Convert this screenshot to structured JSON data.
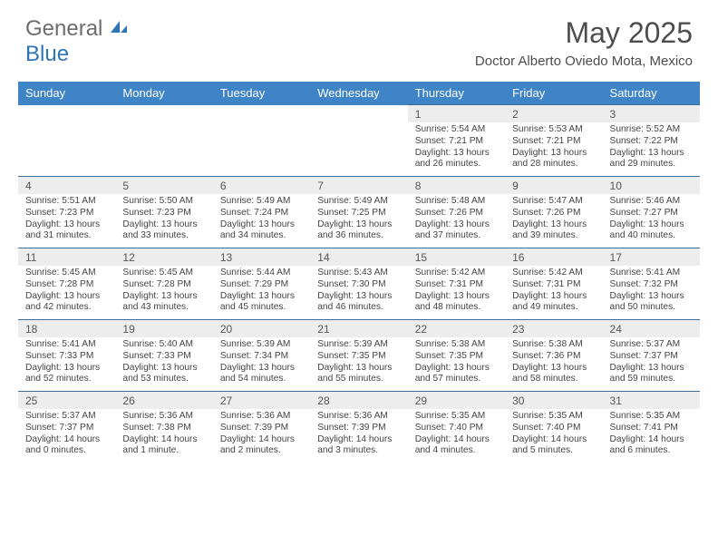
{
  "logo": {
    "text_a": "General",
    "text_b": "Blue"
  },
  "title": "May 2025",
  "subtitle": "Doctor Alberto Oviedo Mota, Mexico",
  "colors": {
    "header_bg": "#3e84c6",
    "header_text": "#ffffff",
    "daynum_bg": "#ededed",
    "border": "#3e6d99",
    "body_text": "#444444",
    "logo_gray": "#6d6d6d",
    "logo_blue": "#2f74b5"
  },
  "fonts": {
    "title_size": 32,
    "subtitle_size": 15,
    "dayheader_size": 13,
    "daynum_size": 12,
    "detail_size": 10.2
  },
  "day_headers": [
    "Sunday",
    "Monday",
    "Tuesday",
    "Wednesday",
    "Thursday",
    "Friday",
    "Saturday"
  ],
  "weeks": [
    [
      null,
      null,
      null,
      null,
      {
        "n": "1",
        "sr": "5:54 AM",
        "ss": "7:21 PM",
        "dl": "13 hours and 26 minutes."
      },
      {
        "n": "2",
        "sr": "5:53 AM",
        "ss": "7:21 PM",
        "dl": "13 hours and 28 minutes."
      },
      {
        "n": "3",
        "sr": "5:52 AM",
        "ss": "7:22 PM",
        "dl": "13 hours and 29 minutes."
      }
    ],
    [
      {
        "n": "4",
        "sr": "5:51 AM",
        "ss": "7:23 PM",
        "dl": "13 hours and 31 minutes."
      },
      {
        "n": "5",
        "sr": "5:50 AM",
        "ss": "7:23 PM",
        "dl": "13 hours and 33 minutes."
      },
      {
        "n": "6",
        "sr": "5:49 AM",
        "ss": "7:24 PM",
        "dl": "13 hours and 34 minutes."
      },
      {
        "n": "7",
        "sr": "5:49 AM",
        "ss": "7:25 PM",
        "dl": "13 hours and 36 minutes."
      },
      {
        "n": "8",
        "sr": "5:48 AM",
        "ss": "7:26 PM",
        "dl": "13 hours and 37 minutes."
      },
      {
        "n": "9",
        "sr": "5:47 AM",
        "ss": "7:26 PM",
        "dl": "13 hours and 39 minutes."
      },
      {
        "n": "10",
        "sr": "5:46 AM",
        "ss": "7:27 PM",
        "dl": "13 hours and 40 minutes."
      }
    ],
    [
      {
        "n": "11",
        "sr": "5:45 AM",
        "ss": "7:28 PM",
        "dl": "13 hours and 42 minutes."
      },
      {
        "n": "12",
        "sr": "5:45 AM",
        "ss": "7:28 PM",
        "dl": "13 hours and 43 minutes."
      },
      {
        "n": "13",
        "sr": "5:44 AM",
        "ss": "7:29 PM",
        "dl": "13 hours and 45 minutes."
      },
      {
        "n": "14",
        "sr": "5:43 AM",
        "ss": "7:30 PM",
        "dl": "13 hours and 46 minutes."
      },
      {
        "n": "15",
        "sr": "5:42 AM",
        "ss": "7:31 PM",
        "dl": "13 hours and 48 minutes."
      },
      {
        "n": "16",
        "sr": "5:42 AM",
        "ss": "7:31 PM",
        "dl": "13 hours and 49 minutes."
      },
      {
        "n": "17",
        "sr": "5:41 AM",
        "ss": "7:32 PM",
        "dl": "13 hours and 50 minutes."
      }
    ],
    [
      {
        "n": "18",
        "sr": "5:41 AM",
        "ss": "7:33 PM",
        "dl": "13 hours and 52 minutes."
      },
      {
        "n": "19",
        "sr": "5:40 AM",
        "ss": "7:33 PM",
        "dl": "13 hours and 53 minutes."
      },
      {
        "n": "20",
        "sr": "5:39 AM",
        "ss": "7:34 PM",
        "dl": "13 hours and 54 minutes."
      },
      {
        "n": "21",
        "sr": "5:39 AM",
        "ss": "7:35 PM",
        "dl": "13 hours and 55 minutes."
      },
      {
        "n": "22",
        "sr": "5:38 AM",
        "ss": "7:35 PM",
        "dl": "13 hours and 57 minutes."
      },
      {
        "n": "23",
        "sr": "5:38 AM",
        "ss": "7:36 PM",
        "dl": "13 hours and 58 minutes."
      },
      {
        "n": "24",
        "sr": "5:37 AM",
        "ss": "7:37 PM",
        "dl": "13 hours and 59 minutes."
      }
    ],
    [
      {
        "n": "25",
        "sr": "5:37 AM",
        "ss": "7:37 PM",
        "dl": "14 hours and 0 minutes."
      },
      {
        "n": "26",
        "sr": "5:36 AM",
        "ss": "7:38 PM",
        "dl": "14 hours and 1 minute."
      },
      {
        "n": "27",
        "sr": "5:36 AM",
        "ss": "7:39 PM",
        "dl": "14 hours and 2 minutes."
      },
      {
        "n": "28",
        "sr": "5:36 AM",
        "ss": "7:39 PM",
        "dl": "14 hours and 3 minutes."
      },
      {
        "n": "29",
        "sr": "5:35 AM",
        "ss": "7:40 PM",
        "dl": "14 hours and 4 minutes."
      },
      {
        "n": "30",
        "sr": "5:35 AM",
        "ss": "7:40 PM",
        "dl": "14 hours and 5 minutes."
      },
      {
        "n": "31",
        "sr": "5:35 AM",
        "ss": "7:41 PM",
        "dl": "14 hours and 6 minutes."
      }
    ]
  ],
  "labels": {
    "sunrise": "Sunrise:",
    "sunset": "Sunset:",
    "daylight": "Daylight:"
  }
}
